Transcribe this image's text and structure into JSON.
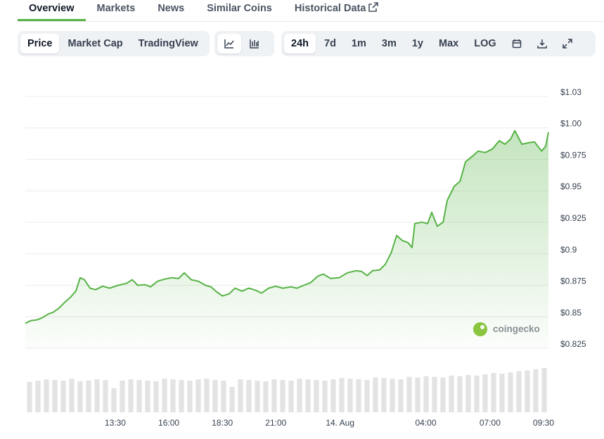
{
  "tabs": [
    {
      "label": "Overview",
      "active": true
    },
    {
      "label": "Markets",
      "active": false
    },
    {
      "label": "News",
      "active": false
    },
    {
      "label": "Similar Coins",
      "active": false
    },
    {
      "label": "Historical Data",
      "active": false
    }
  ],
  "toolbar": {
    "chart_modes": [
      {
        "label": "Price",
        "active": true
      },
      {
        "label": "Market Cap",
        "active": false
      },
      {
        "label": "TradingView",
        "active": false
      }
    ],
    "ranges": [
      {
        "label": "24h",
        "active": true
      },
      {
        "label": "7d",
        "active": false
      },
      {
        "label": "1m",
        "active": false
      },
      {
        "label": "3m",
        "active": false
      },
      {
        "label": "1y",
        "active": false
      },
      {
        "label": "Max",
        "active": false
      },
      {
        "label": "LOG",
        "active": false
      }
    ]
  },
  "watermark": "coingecko",
  "chart_data": {
    "type": "line",
    "color": "#57b346",
    "grid": true,
    "xlim": [
      9.3,
      33.73
    ],
    "ylim": [
      0.82,
      1.03
    ],
    "xticks": [
      {
        "value": 13.5,
        "label": "13:30"
      },
      {
        "value": 16,
        "label": "16:00"
      },
      {
        "value": 18.5,
        "label": "18:30"
      },
      {
        "value": 21,
        "label": "21:00"
      },
      {
        "value": 24,
        "label": "14. Aug"
      },
      {
        "value": 28,
        "label": "04:00"
      },
      {
        "value": 31,
        "label": "07:00"
      },
      {
        "value": 33.5,
        "label": "09:30"
      }
    ],
    "yticks": [
      {
        "value": 1.025,
        "label": "$1.03"
      },
      {
        "value": 1.0,
        "label": "$1.00"
      },
      {
        "value": 0.975,
        "label": "$0.975"
      },
      {
        "value": 0.95,
        "label": "$0.95"
      },
      {
        "value": 0.925,
        "label": "$0.925"
      },
      {
        "value": 0.9,
        "label": "$0.9"
      },
      {
        "value": 0.875,
        "label": "$0.875"
      },
      {
        "value": 0.85,
        "label": "$0.85"
      },
      {
        "value": 0.825,
        "label": "$0.825"
      }
    ],
    "x": [
      9.3,
      9.56,
      9.83,
      10.09,
      10.35,
      10.61,
      10.88,
      11.14,
      11.4,
      11.66,
      11.86,
      12.06,
      12.32,
      12.58,
      12.91,
      13.24,
      13.64,
      14.03,
      14.29,
      14.55,
      14.88,
      15.15,
      15.47,
      15.8,
      16.13,
      16.46,
      16.72,
      17.05,
      17.38,
      17.71,
      17.97,
      18.23,
      18.5,
      18.82,
      19.09,
      19.42,
      19.74,
      20.07,
      20.33,
      20.66,
      20.99,
      21.32,
      21.71,
      21.98,
      22.31,
      22.63,
      22.96,
      23.22,
      23.55,
      23.95,
      24.34,
      24.74,
      25.0,
      25.26,
      25.52,
      25.85,
      26.11,
      26.38,
      26.64,
      26.9,
      27.17,
      27.36,
      27.49,
      27.82,
      28.09,
      28.28,
      28.54,
      28.81,
      29.0,
      29.33,
      29.6,
      29.86,
      30.19,
      30.45,
      30.78,
      31.11,
      31.43,
      31.7,
      31.96,
      32.16,
      32.49,
      32.81,
      33.08,
      33.41,
      33.6,
      33.73
    ],
    "values": [
      0.8448,
      0.847,
      0.8475,
      0.8492,
      0.852,
      0.8537,
      0.857,
      0.8615,
      0.8654,
      0.8704,
      0.881,
      0.8794,
      0.8727,
      0.8715,
      0.8743,
      0.8727,
      0.875,
      0.8766,
      0.8794,
      0.875,
      0.8755,
      0.8738,
      0.8782,
      0.8799,
      0.881,
      0.8804,
      0.8849,
      0.8794,
      0.8782,
      0.875,
      0.8738,
      0.8699,
      0.8665,
      0.8682,
      0.8727,
      0.8704,
      0.8727,
      0.871,
      0.8688,
      0.8727,
      0.8743,
      0.8727,
      0.8738,
      0.8727,
      0.875,
      0.8772,
      0.8822,
      0.8839,
      0.8805,
      0.881,
      0.8849,
      0.8866,
      0.886,
      0.8827,
      0.8866,
      0.8872,
      0.8916,
      0.9006,
      0.9145,
      0.9106,
      0.9089,
      0.905,
      0.924,
      0.9251,
      0.924,
      0.9329,
      0.9218,
      0.9251,
      0.9424,
      0.9536,
      0.9575,
      0.9731,
      0.9776,
      0.9815,
      0.9804,
      0.9832,
      0.9898,
      0.987,
      0.991,
      0.9977,
      0.987,
      0.9882,
      0.9888,
      0.9815,
      0.9854,
      0.9965
    ],
    "volume": {
      "color": "#e3e3e3",
      "ylim": [
        0,
        100
      ],
      "values": [
        48,
        50,
        52,
        51,
        50,
        53,
        49,
        50,
        52,
        51,
        38,
        50,
        52,
        51,
        50,
        49,
        53,
        52,
        51,
        50,
        52,
        53,
        51,
        50,
        40,
        52,
        51,
        50,
        49,
        52,
        51,
        50,
        53,
        52,
        51,
        50,
        52,
        54,
        53,
        52,
        51,
        55,
        54,
        53,
        52,
        56,
        55,
        57,
        56,
        55,
        58,
        57,
        59,
        58,
        60,
        62,
        61,
        63,
        65,
        66,
        68,
        70
      ]
    }
  }
}
